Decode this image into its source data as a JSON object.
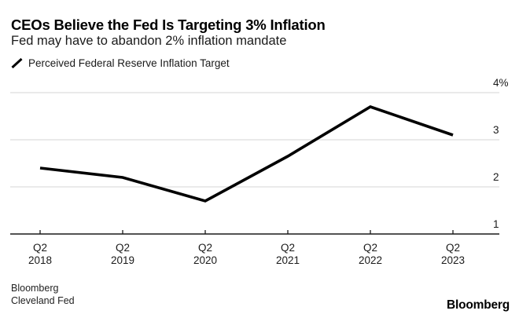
{
  "header": {
    "title": "CEOs Believe the Fed Is Targeting 3% Inflation",
    "subtitle": "Fed may have to abandon 2% inflation mandate"
  },
  "legend": {
    "label": "Perceived Federal Reserve Inflation Target",
    "marker_icon": "line-segment-icon"
  },
  "chart_data": {
    "type": "line",
    "categories": [
      [
        "Q2",
        "2018"
      ],
      [
        "Q2",
        "2019"
      ],
      [
        "Q2",
        "2020"
      ],
      [
        "Q2",
        "2021"
      ],
      [
        "Q2",
        "2022"
      ],
      [
        "Q2",
        "2023"
      ]
    ],
    "series": [
      {
        "name": "Perceived Federal Reserve Inflation Target",
        "values": [
          2.4,
          2.2,
          1.7,
          2.65,
          3.7,
          3.1
        ]
      }
    ],
    "title": "CEOs Believe the Fed Is Targeting 3% Inflation",
    "xlabel": "",
    "ylabel": "",
    "ylim": [
      1,
      4
    ],
    "y_ticks": [
      1,
      2,
      3,
      4
    ],
    "y_tick_labels": [
      "1",
      "2",
      "3",
      "4%"
    ],
    "grid": "horizontal",
    "legend_position": "top-left",
    "colors": {
      "line": "#000000",
      "grid": "#dedede",
      "axis": "#1a1a1a",
      "tick_text": "#1a1a1a",
      "background": "#ffffff"
    }
  },
  "footer": {
    "source_line1": "Bloomberg",
    "source_line2": "Cleveland Fed",
    "brand": "Bloomberg"
  }
}
